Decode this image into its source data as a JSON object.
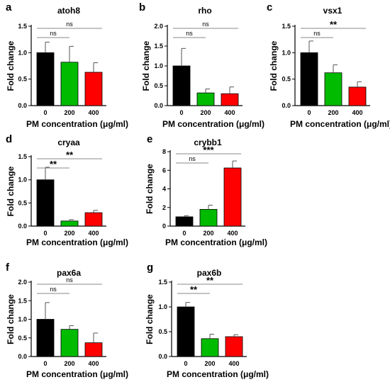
{
  "chart_data": [
    {
      "panel": "a",
      "type": "bar",
      "title": "atoh8",
      "ylabel": "Fold change",
      "xlabel": "PM concentration (μg/ml)",
      "categories": [
        "0",
        "200",
        "400"
      ],
      "values": [
        1.0,
        0.82,
        0.63
      ],
      "errors": [
        0.2,
        0.3,
        0.18
      ],
      "colors": [
        "#000000",
        "#00bb00",
        "#ff0000"
      ],
      "ylim": [
        0,
        1.5
      ],
      "yticks": [
        "0.0",
        "0.5",
        "1.0",
        "1.5"
      ],
      "comparisons": [
        {
          "from": 0,
          "to": 1,
          "label": "ns"
        },
        {
          "from": 0,
          "to": 2,
          "label": "ns"
        }
      ]
    },
    {
      "panel": "b",
      "type": "bar",
      "title": "rho",
      "ylabel": "Fold change",
      "xlabel": "PM concentration (μg/ml)",
      "categories": [
        "0",
        "200",
        "400"
      ],
      "values": [
        1.0,
        0.32,
        0.3
      ],
      "errors": [
        0.44,
        0.1,
        0.17
      ],
      "colors": [
        "#000000",
        "#00bb00",
        "#ff0000"
      ],
      "ylim": [
        0,
        2.0
      ],
      "yticks": [
        "0.0",
        "0.5",
        "1.0",
        "1.5",
        "2.0"
      ],
      "comparisons": [
        {
          "from": 0,
          "to": 1,
          "label": "ns"
        },
        {
          "from": 0,
          "to": 2,
          "label": "ns"
        }
      ]
    },
    {
      "panel": "c",
      "type": "bar",
      "title": "vsx1",
      "ylabel": "Fold change",
      "xlabel": "PM concentration (μg/ml)",
      "categories": [
        "0",
        "200",
        "400"
      ],
      "values": [
        1.0,
        0.62,
        0.35
      ],
      "errors": [
        0.22,
        0.15,
        0.1
      ],
      "colors": [
        "#000000",
        "#00bb00",
        "#ff0000"
      ],
      "ylim": [
        0,
        1.5
      ],
      "yticks": [
        "0.0",
        "0.5",
        "1.0",
        "1.5"
      ],
      "comparisons": [
        {
          "from": 0,
          "to": 1,
          "label": "ns"
        },
        {
          "from": 0,
          "to": 2,
          "label": "**"
        }
      ]
    },
    {
      "panel": "d",
      "type": "bar",
      "title": "cryaa",
      "ylabel": "Fold change",
      "xlabel": "PM concentration (μg/ml)",
      "categories": [
        "0",
        "200",
        "400"
      ],
      "values": [
        1.0,
        0.11,
        0.29
      ],
      "errors": [
        0.27,
        0.03,
        0.05
      ],
      "colors": [
        "#000000",
        "#00bb00",
        "#ff0000"
      ],
      "ylim": [
        0,
        1.5
      ],
      "yticks": [
        "0.0",
        "0.5",
        "1.0",
        "1.5"
      ],
      "comparisons": [
        {
          "from": 0,
          "to": 1,
          "label": "**"
        },
        {
          "from": 0,
          "to": 2,
          "label": "**"
        }
      ]
    },
    {
      "panel": "e",
      "type": "bar",
      "title": "crybb1",
      "ylabel": "Fold change",
      "xlabel": "PM concentration (μg/ml)",
      "categories": [
        "0",
        "200",
        "400"
      ],
      "values": [
        1.0,
        1.8,
        6.25
      ],
      "errors": [
        0.12,
        0.45,
        0.75
      ],
      "colors": [
        "#000000",
        "#00bb00",
        "#ff0000"
      ],
      "ylim": [
        0,
        8
      ],
      "yticks": [
        "0",
        "2",
        "4",
        "6",
        "8"
      ],
      "comparisons": [
        {
          "from": 0,
          "to": 1,
          "label": "ns"
        },
        {
          "from": 0,
          "to": 2,
          "label": "***"
        }
      ]
    },
    {
      "panel": "f",
      "type": "bar",
      "title": "pax6a",
      "ylabel": "Fold change",
      "xlabel": "PM concentration (μg/ml)",
      "categories": [
        "0",
        "200",
        "400"
      ],
      "values": [
        1.0,
        0.73,
        0.37
      ],
      "errors": [
        0.45,
        0.1,
        0.26
      ],
      "colors": [
        "#000000",
        "#00bb00",
        "#ff0000"
      ],
      "ylim": [
        0,
        2.0
      ],
      "yticks": [
        "0.0",
        "0.5",
        "1.0",
        "1.5",
        "2.0"
      ],
      "comparisons": [
        {
          "from": 0,
          "to": 1,
          "label": "ns"
        },
        {
          "from": 0,
          "to": 2,
          "label": "ns"
        }
      ]
    },
    {
      "panel": "g",
      "type": "bar",
      "title": "pax6b",
      "ylabel": "Fold change",
      "xlabel": "PM concentration (μg/ml)",
      "categories": [
        "0",
        "200",
        "400"
      ],
      "values": [
        1.0,
        0.36,
        0.4
      ],
      "errors": [
        0.09,
        0.09,
        0.04
      ],
      "colors": [
        "#000000",
        "#00bb00",
        "#ff0000"
      ],
      "ylim": [
        0,
        1.5
      ],
      "yticks": [
        "0.0",
        "0.5",
        "1.0",
        "1.5"
      ],
      "comparisons": [
        {
          "from": 0,
          "to": 1,
          "label": "**"
        },
        {
          "from": 0,
          "to": 2,
          "label": "**"
        }
      ]
    }
  ]
}
